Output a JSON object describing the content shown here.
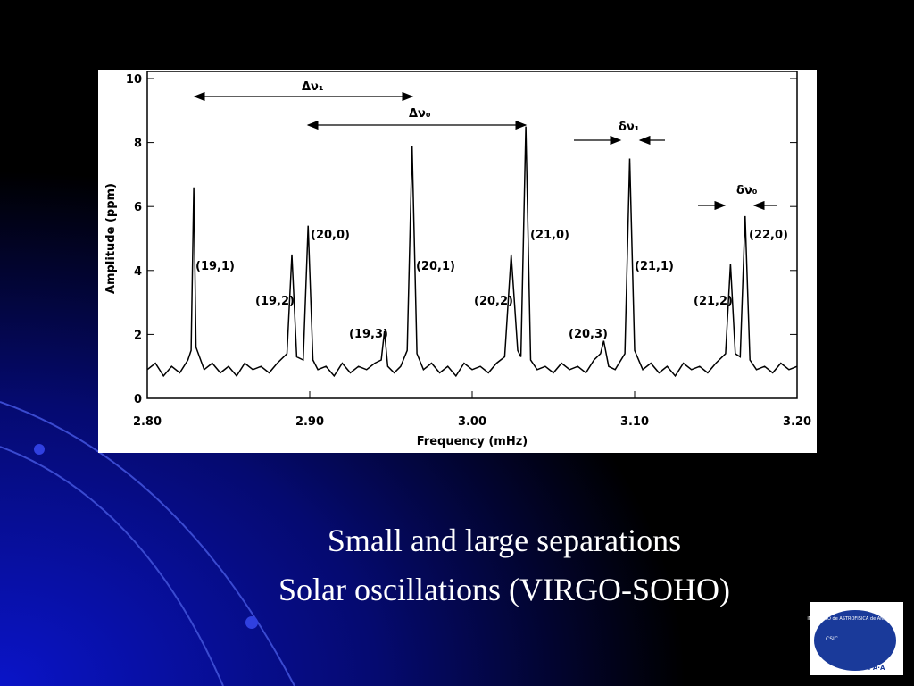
{
  "chart_data": {
    "type": "line",
    "xlabel": "Frequency (mHz)",
    "ylabel": "Amplitude (ppm)",
    "xlim": [
      2.8,
      3.2
    ],
    "ylim": [
      0,
      10
    ],
    "xticks": [
      {
        "value": 2.8,
        "label": "2.80"
      },
      {
        "value": 2.9,
        "label": "2.90"
      },
      {
        "value": 3.0,
        "label": "3.00"
      },
      {
        "value": 3.1,
        "label": "3.10"
      },
      {
        "value": 3.2,
        "label": "3.20"
      }
    ],
    "yticks": [
      0,
      2,
      4,
      6,
      8,
      10
    ],
    "color": "#000000",
    "x": [
      2.8,
      2.805,
      2.81,
      2.815,
      2.82,
      2.825,
      2.827,
      2.8286,
      2.83,
      2.835,
      2.84,
      2.845,
      2.85,
      2.855,
      2.86,
      2.865,
      2.87,
      2.875,
      2.88,
      2.886,
      2.889,
      2.892,
      2.896,
      2.899,
      2.902,
      2.905,
      2.91,
      2.915,
      2.92,
      2.925,
      2.93,
      2.935,
      2.94,
      2.944,
      2.946,
      2.948,
      2.952,
      2.956,
      2.96,
      2.963,
      2.966,
      2.97,
      2.975,
      2.98,
      2.985,
      2.99,
      2.995,
      3.0,
      3.005,
      3.01,
      3.015,
      3.02,
      3.024,
      3.028,
      3.03,
      3.033,
      3.036,
      3.04,
      3.045,
      3.05,
      3.055,
      3.06,
      3.065,
      3.07,
      3.075,
      3.079,
      3.081,
      3.084,
      3.088,
      3.094,
      3.097,
      3.1,
      3.105,
      3.11,
      3.115,
      3.12,
      3.125,
      3.13,
      3.135,
      3.14,
      3.145,
      3.15,
      3.156,
      3.159,
      3.162,
      3.165,
      3.168,
      3.171,
      3.175,
      3.18,
      3.185,
      3.19,
      3.195,
      3.2
    ],
    "values": [
      0.9,
      1.1,
      0.7,
      1.0,
      0.8,
      1.2,
      1.5,
      6.6,
      1.6,
      0.9,
      1.1,
      0.8,
      1.0,
      0.7,
      1.1,
      0.9,
      1.0,
      0.8,
      1.1,
      1.4,
      4.5,
      1.3,
      1.2,
      5.4,
      1.2,
      0.9,
      1.0,
      0.7,
      1.1,
      0.8,
      1.0,
      0.9,
      1.1,
      1.2,
      2.1,
      1.0,
      0.8,
      1.0,
      1.5,
      7.9,
      1.4,
      0.9,
      1.1,
      0.8,
      1.0,
      0.7,
      1.1,
      0.9,
      1.0,
      0.8,
      1.1,
      1.3,
      4.5,
      1.5,
      1.3,
      8.5,
      1.2,
      0.9,
      1.0,
      0.8,
      1.1,
      0.9,
      1.0,
      0.8,
      1.2,
      1.4,
      1.8,
      1.0,
      0.9,
      1.4,
      7.5,
      1.5,
      0.9,
      1.1,
      0.8,
      1.0,
      0.7,
      1.1,
      0.9,
      1.0,
      0.8,
      1.1,
      1.4,
      4.2,
      1.4,
      1.3,
      5.7,
      1.2,
      0.9,
      1.0,
      0.8,
      1.1,
      0.9,
      1.0
    ],
    "annotations": [
      "(19,1)",
      "(19,2)",
      "(20,0)",
      "(19,3)",
      "(20,1)",
      "(20,2)",
      "(21,0)",
      "(20,3)",
      "(21,1)",
      "(21,2)",
      "(22,0)",
      "Δν₁",
      "Δν₀",
      "δν₁",
      "δν₀"
    ]
  },
  "slide": {
    "title_lines": [
      "Small and large separations",
      "Solar oscillations (VIRGO-SOHO)"
    ],
    "logo": {
      "name": "INSTITUTO de ASTROFISICA de ANDALUCIA",
      "org": "CSIC",
      "short": "I·A·A"
    }
  }
}
